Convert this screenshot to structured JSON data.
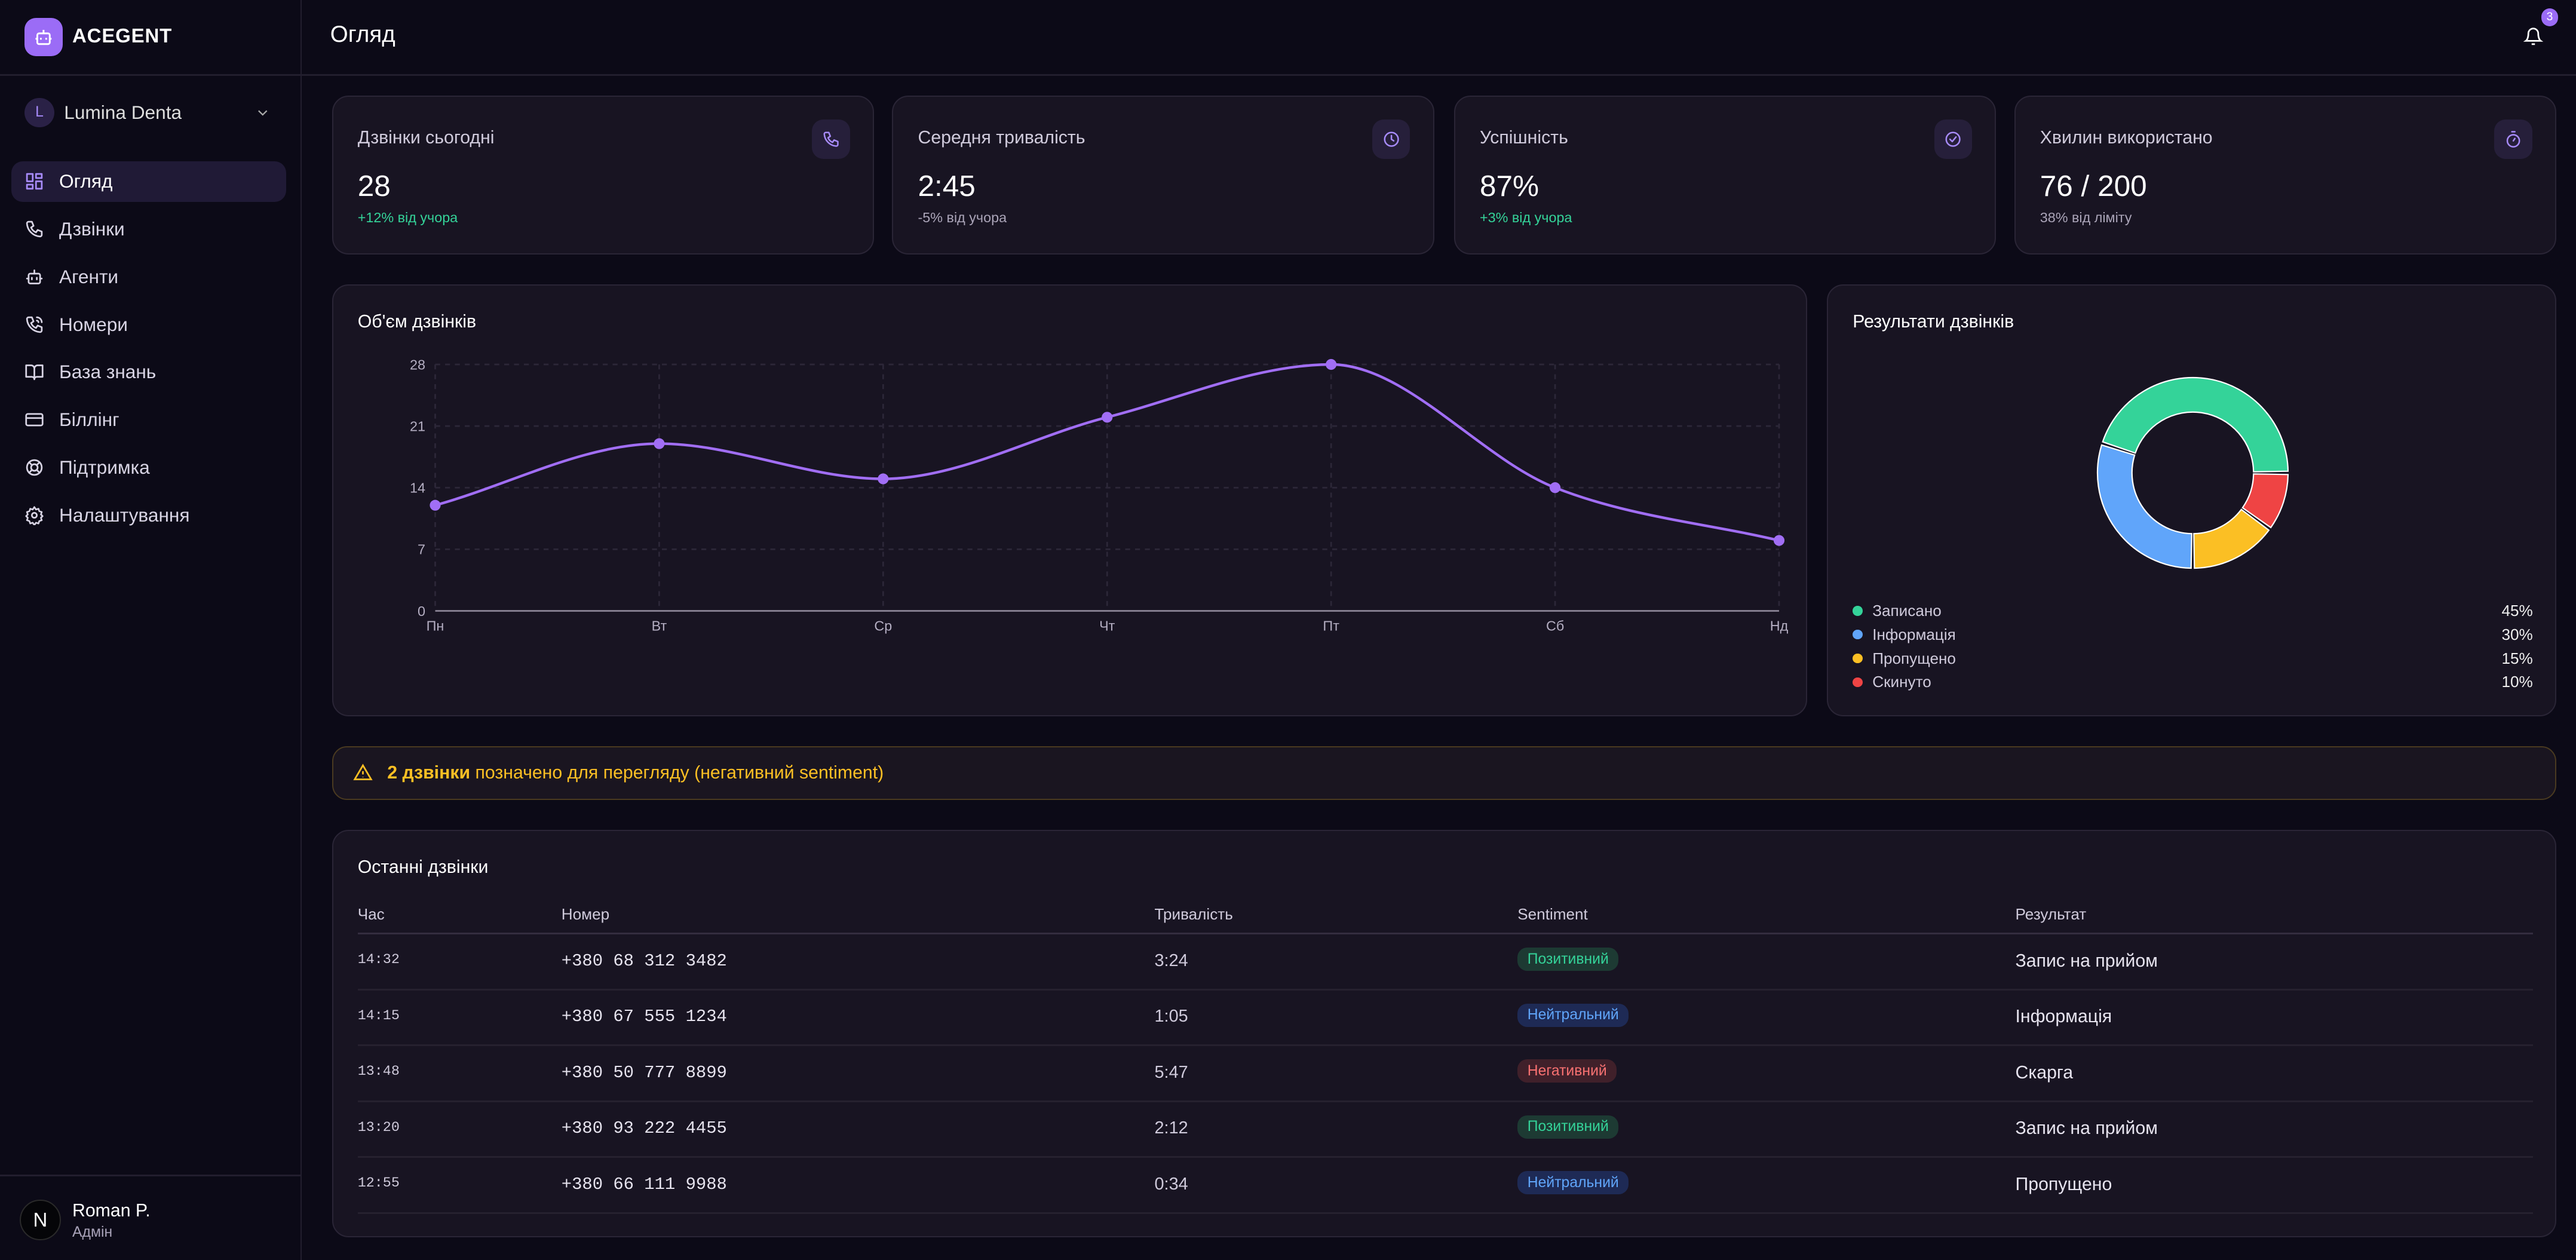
{
  "app": {
    "brand": "ACEGENT",
    "page_title": "Огляд",
    "notifications_count": "3"
  },
  "sidebar": {
    "org": {
      "initial": "L",
      "name": "Lumina Denta"
    },
    "items": [
      {
        "label": "Огляд",
        "icon": "grid-icon",
        "active": true
      },
      {
        "label": "Дзвінки",
        "icon": "phone-icon"
      },
      {
        "label": "Агенти",
        "icon": "bot-icon"
      },
      {
        "label": "Номери",
        "icon": "phone-call-icon"
      },
      {
        "label": "База знань",
        "icon": "book-icon"
      },
      {
        "label": "Біллінг",
        "icon": "credit-card-icon"
      },
      {
        "label": "Підтримка",
        "icon": "lifebuoy-icon"
      },
      {
        "label": "Налаштування",
        "icon": "gear-icon"
      }
    ],
    "user": {
      "avatar": "N",
      "name": "Roman P.",
      "role": "Адмін"
    }
  },
  "stats": [
    {
      "label": "Дзвінки сьогодні",
      "value": "28",
      "sub": "+12% від учора",
      "positive": true,
      "icon": "phone-icon"
    },
    {
      "label": "Середня тривалість",
      "value": "2:45",
      "sub": "-5% від учора",
      "positive": false,
      "icon": "clock-icon"
    },
    {
      "label": "Успішність",
      "value": "87%",
      "sub": "+3% від учора",
      "positive": true,
      "icon": "check-circle-icon"
    },
    {
      "label": "Хвилин використано",
      "value": "76 / 200",
      "sub": "38% від ліміту",
      "positive": false,
      "icon": "timer-icon"
    }
  ],
  "chart_data": [
    {
      "type": "line",
      "title": "Об'єм дзвінків",
      "categories": [
        "Пн",
        "Вт",
        "Ср",
        "Чт",
        "Пт",
        "Сб",
        "Нд"
      ],
      "values": [
        12,
        19,
        15,
        22,
        28,
        14,
        8
      ],
      "yticks": [
        0,
        7,
        14,
        21,
        28
      ],
      "ylim": [
        0,
        28
      ],
      "grid": true,
      "color": "#a16ef5"
    },
    {
      "type": "pie",
      "title": "Результати дзвінків",
      "labels": [
        "Записано",
        "Інформація",
        "Пропущено",
        "Скинуто"
      ],
      "values": [
        45,
        30,
        15,
        10
      ],
      "value_labels": [
        "45%",
        "30%",
        "15%",
        "10%"
      ],
      "colors": [
        "#34d399",
        "#60a5fa",
        "#fbbf24",
        "#ef4444"
      ],
      "legend": "bottom"
    }
  ],
  "alert": {
    "count_text": "2 дзвінки",
    "text": " позначено для перегляду (негативний sentiment)"
  },
  "table": {
    "title": "Останні дзвінки",
    "headers": [
      "Час",
      "Номер",
      "Тривалість",
      "Sentiment",
      "Результат"
    ],
    "rows": [
      {
        "time": "14:32",
        "number": "+380 68 312 3482",
        "duration": "3:24",
        "sentiment": "Позитивний",
        "kind": "pos",
        "result": "Запис на прийом"
      },
      {
        "time": "14:15",
        "number": "+380 67 555 1234",
        "duration": "1:05",
        "sentiment": "Нейтральний",
        "kind": "neu",
        "result": "Інформація"
      },
      {
        "time": "13:48",
        "number": "+380 50 777 8899",
        "duration": "5:47",
        "sentiment": "Негативний",
        "kind": "neg",
        "result": "Скарга"
      },
      {
        "time": "13:20",
        "number": "+380 93 222 4455",
        "duration": "2:12",
        "sentiment": "Позитивний",
        "kind": "pos",
        "result": "Запис на прийом"
      },
      {
        "time": "12:55",
        "number": "+380 66 111 9988",
        "duration": "0:34",
        "sentiment": "Нейтральний",
        "kind": "neu",
        "result": "Пропущено"
      }
    ]
  }
}
